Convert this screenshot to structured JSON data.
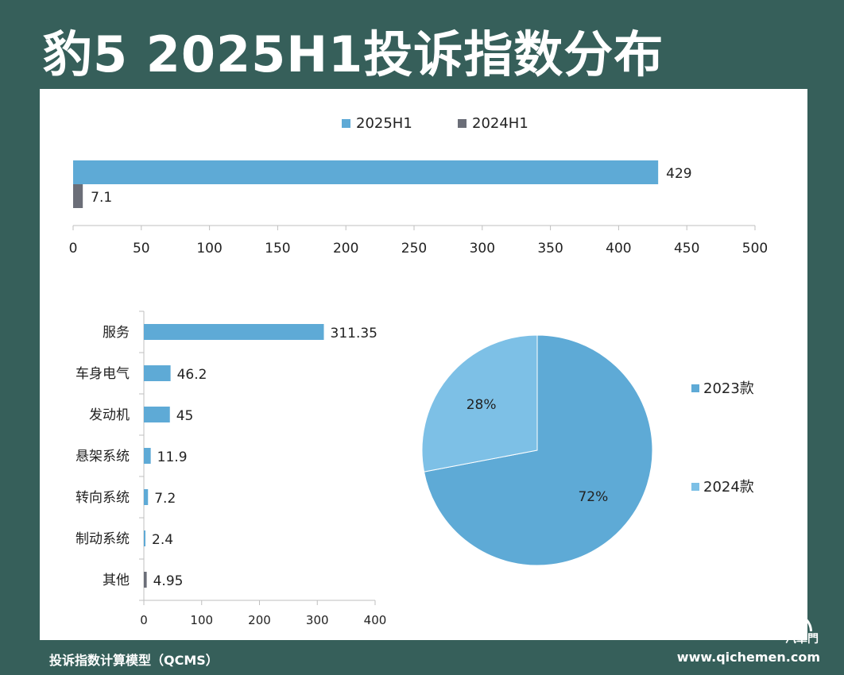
{
  "title": "豹5 2025H1投诉指数分布",
  "colors": {
    "blue": "#5eaad6",
    "gray": "#6b6e78",
    "light_blue": "#7dc0e6"
  },
  "chart_data": [
    {
      "type": "bar",
      "orientation": "horizontal",
      "legend": [
        "2025H1",
        "2024H1"
      ],
      "legend_position": "top",
      "series": [
        {
          "name": "2025H1",
          "values": [
            429
          ],
          "labels": [
            "429"
          ]
        },
        {
          "name": "2024H1",
          "values": [
            7.1
          ],
          "labels": [
            "7.1"
          ]
        }
      ],
      "xlim": [
        0,
        500
      ],
      "xticks": [
        "0",
        "50",
        "100",
        "150",
        "200",
        "250",
        "300",
        "350",
        "400",
        "450",
        "500"
      ]
    },
    {
      "type": "bar",
      "orientation": "horizontal",
      "categories": [
        "服务",
        "车身电气",
        "发动机",
        "悬架系统",
        "转向系统",
        "制动系统",
        "其他"
      ],
      "values": [
        311.35,
        46.2,
        45,
        11.9,
        7.2,
        2.4,
        4.95
      ],
      "labels": [
        "311.35",
        "46.2",
        "45",
        "11.9",
        "7.2",
        "2.4",
        "4.95"
      ],
      "xlim": [
        0,
        400
      ],
      "xticks": [
        "0",
        "100",
        "200",
        "300",
        "400"
      ]
    },
    {
      "type": "pie",
      "slices": [
        {
          "name": "2023款",
          "value": 72,
          "label": "72%"
        },
        {
          "name": "2024款",
          "value": 28,
          "label": "28%"
        }
      ],
      "legend": [
        "2023款",
        "2024款"
      ],
      "legend_position": "right"
    }
  ],
  "footer": {
    "left": "投诉指数计算模型（QCMS）",
    "right": "www.qichemen.com",
    "logo": "汽車門"
  }
}
